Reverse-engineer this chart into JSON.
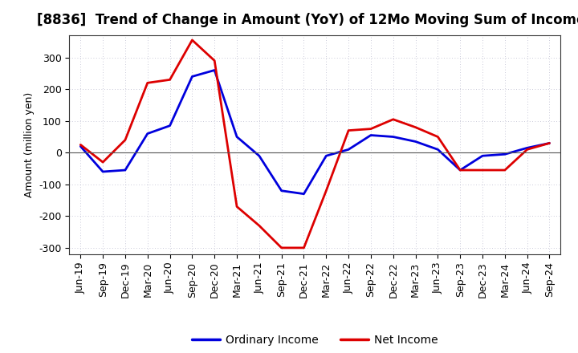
{
  "title": "[8836]  Trend of Change in Amount (YoY) of 12Mo Moving Sum of Incomes",
  "ylabel": "Amount (million yen)",
  "ylim": [
    -320,
    370
  ],
  "yticks": [
    -300,
    -200,
    -100,
    0,
    100,
    200,
    300
  ],
  "background_color": "#ffffff",
  "grid_color": "#8888aa",
  "ordinary_income_color": "#0000dd",
  "net_income_color": "#dd0000",
  "line_width": 2.0,
  "labels": [
    "Jun-19",
    "Sep-19",
    "Dec-19",
    "Mar-20",
    "Jun-20",
    "Sep-20",
    "Dec-20",
    "Mar-21",
    "Jun-21",
    "Sep-21",
    "Dec-21",
    "Mar-22",
    "Jun-22",
    "Sep-22",
    "Dec-22",
    "Mar-23",
    "Jun-23",
    "Sep-23",
    "Dec-23",
    "Mar-24",
    "Jun-24",
    "Sep-24"
  ],
  "ordinary_income": [
    20,
    -60,
    -55,
    60,
    85,
    240,
    260,
    50,
    -10,
    -120,
    -130,
    -10,
    10,
    55,
    50,
    35,
    10,
    -55,
    -10,
    -5,
    15,
    30
  ],
  "net_income": [
    25,
    -30,
    40,
    220,
    230,
    355,
    290,
    -170,
    -230,
    -300,
    -300,
    -120,
    70,
    75,
    105,
    80,
    50,
    -55,
    -55,
    -55,
    10,
    30
  ],
  "title_fontsize": 12,
  "tick_fontsize": 9,
  "ylabel_fontsize": 9,
  "legend_fontsize": 10
}
